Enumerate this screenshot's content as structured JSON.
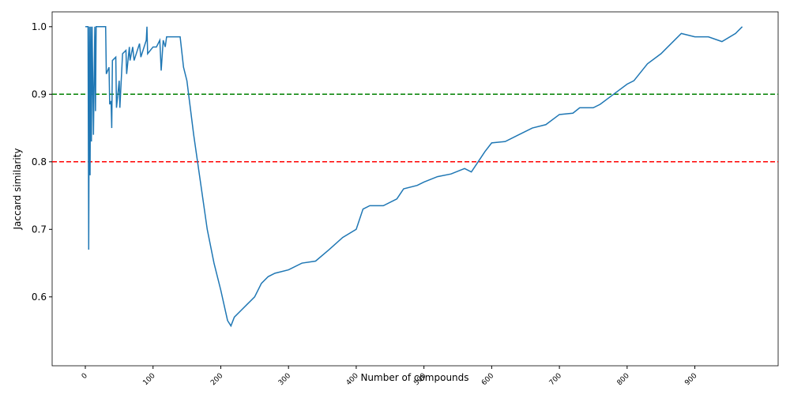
{
  "chart_data": {
    "type": "line",
    "xlabel": "Number of compounds",
    "ylabel": "Jaccard similarity",
    "color": "#1f77b4",
    "x": [
      0,
      4,
      5,
      6,
      7,
      8,
      9,
      10,
      12,
      14,
      15,
      16,
      30,
      31,
      35,
      36,
      38,
      39,
      40,
      45,
      46,
      50,
      51,
      55,
      60,
      61,
      65,
      66,
      70,
      72,
      80,
      82,
      90,
      91,
      92,
      100,
      105,
      110,
      112,
      115,
      118,
      120,
      140,
      145,
      150,
      155,
      160,
      170,
      180,
      190,
      200,
      210,
      215,
      220,
      230,
      240,
      250,
      260,
      270,
      280,
      300,
      320,
      340,
      360,
      380,
      400,
      410,
      420,
      440,
      460,
      470,
      490,
      500,
      520,
      540,
      560,
      570,
      580,
      590,
      600,
      620,
      640,
      660,
      680,
      700,
      720,
      730,
      750,
      760,
      780,
      800,
      810,
      830,
      850,
      860,
      880,
      900,
      920,
      940,
      960,
      970
    ],
    "values": [
      1.0,
      1.0,
      0.67,
      1.0,
      0.78,
      1.0,
      0.83,
      1.0,
      0.84,
      1.0,
      0.875,
      1.0,
      1.0,
      0.93,
      0.94,
      0.885,
      0.89,
      0.85,
      0.95,
      0.955,
      0.88,
      0.92,
      0.88,
      0.96,
      0.965,
      0.93,
      0.97,
      0.95,
      0.97,
      0.95,
      0.975,
      0.955,
      0.98,
      1.0,
      0.96,
      0.97,
      0.97,
      0.98,
      0.935,
      0.98,
      0.97,
      0.985,
      0.985,
      0.94,
      0.92,
      0.88,
      0.84,
      0.77,
      0.7,
      0.65,
      0.61,
      0.565,
      0.557,
      0.57,
      0.58,
      0.59,
      0.6,
      0.62,
      0.63,
      0.635,
      0.64,
      0.65,
      0.653,
      0.67,
      0.688,
      0.7,
      0.73,
      0.735,
      0.735,
      0.745,
      0.76,
      0.765,
      0.77,
      0.778,
      0.782,
      0.79,
      0.785,
      0.8,
      0.815,
      0.828,
      0.83,
      0.84,
      0.85,
      0.855,
      0.87,
      0.872,
      0.88,
      0.88,
      0.885,
      0.9,
      0.915,
      0.92,
      0.945,
      0.96,
      0.97,
      0.99,
      0.985,
      0.985,
      0.978,
      0.99,
      1.0
    ],
    "hlines": [
      {
        "value": 0.9,
        "color": "#008000"
      },
      {
        "value": 0.8,
        "color": "#ff0000"
      }
    ],
    "xlim": [
      -49,
      1023
    ],
    "ylim": [
      0.498,
      1.022
    ],
    "xticks": [
      0,
      100,
      200,
      300,
      400,
      500,
      600,
      700,
      800,
      900
    ],
    "yticks": [
      0.6,
      0.7,
      0.8,
      0.9,
      {
        "value": 1,
        "label": "1.0"
      }
    ]
  }
}
